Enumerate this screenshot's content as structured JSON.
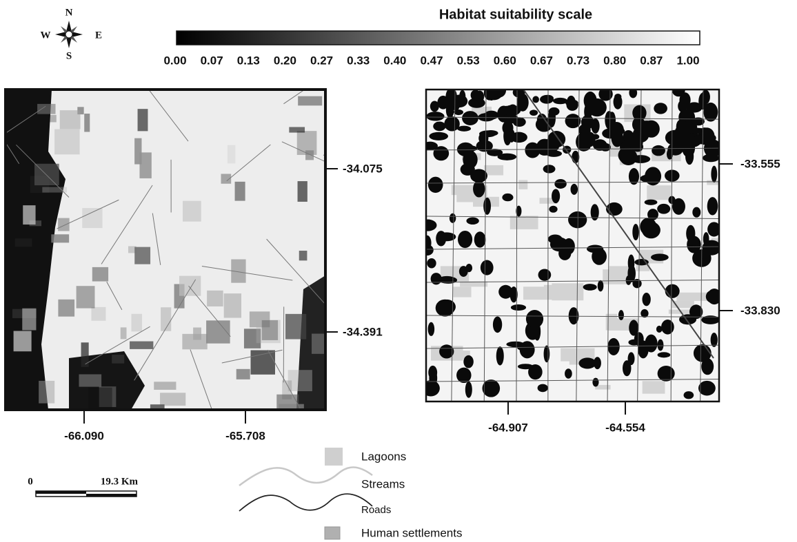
{
  "compass": {
    "north": "N",
    "south": "S",
    "east": "E",
    "west": "W"
  },
  "suitability_scale": {
    "title": "Habitat suitability scale",
    "ticks": [
      "0.00",
      "0.07",
      "0.13",
      "0.20",
      "0.27",
      "0.33",
      "0.40",
      "0.47",
      "0.53",
      "0.60",
      "0.67",
      "0.73",
      "0.80",
      "0.87",
      "1.00"
    ]
  },
  "left_map": {
    "lat_labels": [
      "-34.075",
      "-34.391"
    ],
    "lon_labels": [
      "-66.090",
      "-65.708"
    ]
  },
  "right_map": {
    "lat_labels": [
      "-33.555",
      "-33.830"
    ],
    "lon_labels": [
      "-64.907",
      "-64.554"
    ]
  },
  "legend": {
    "items": [
      "Lagoons",
      "Streams",
      "Roads",
      "Human settlements"
    ]
  },
  "scale_bar": {
    "start": "0",
    "end": "19.3 Km"
  }
}
